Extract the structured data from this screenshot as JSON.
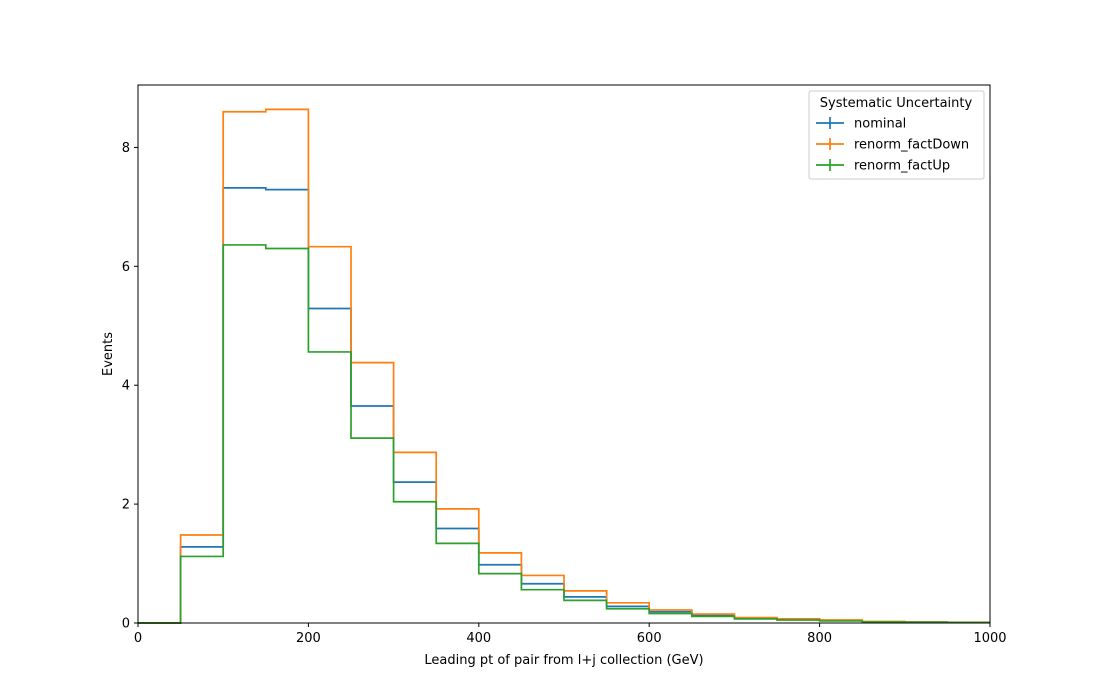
{
  "chart_data": {
    "type": "line",
    "drawstyle": "steps",
    "xlabel": "Leading pt of pair from l+j collection (GeV)",
    "ylabel": "Events",
    "xlim": [
      0,
      1000
    ],
    "ylim": [
      0,
      9.05
    ],
    "xticks": [
      0,
      200,
      400,
      600,
      800,
      1000
    ],
    "yticks": [
      0,
      2,
      4,
      6,
      8
    ],
    "grid": false,
    "legend": {
      "title": "Systematic Uncertainty",
      "placement": "top-right"
    },
    "bin_edges": [
      0,
      50,
      100,
      150,
      200,
      250,
      300,
      350,
      400,
      450,
      500,
      550,
      600,
      650,
      700,
      750,
      800,
      850,
      900,
      950,
      1000
    ],
    "series": [
      {
        "name": "nominal",
        "color": "#1f77b4",
        "values": [
          0,
          1.28,
          7.32,
          7.29,
          5.29,
          3.65,
          2.37,
          1.59,
          0.98,
          0.66,
          0.44,
          0.28,
          0.19,
          0.13,
          0.08,
          0.06,
          0.04,
          0.02,
          0.015,
          0.01
        ]
      },
      {
        "name": "renorm_factDown",
        "color": "#ff7f0e",
        "values": [
          0,
          1.48,
          8.6,
          8.64,
          6.33,
          4.38,
          2.87,
          1.92,
          1.18,
          0.8,
          0.54,
          0.34,
          0.22,
          0.15,
          0.09,
          0.07,
          0.05,
          0.025,
          0.018,
          0.012
        ]
      },
      {
        "name": "renorm_factUp",
        "color": "#2ca02c",
        "values": [
          0,
          1.12,
          6.36,
          6.3,
          4.56,
          3.11,
          2.04,
          1.34,
          0.83,
          0.56,
          0.38,
          0.24,
          0.16,
          0.11,
          0.07,
          0.05,
          0.035,
          0.018,
          0.012,
          0.008
        ]
      }
    ]
  }
}
